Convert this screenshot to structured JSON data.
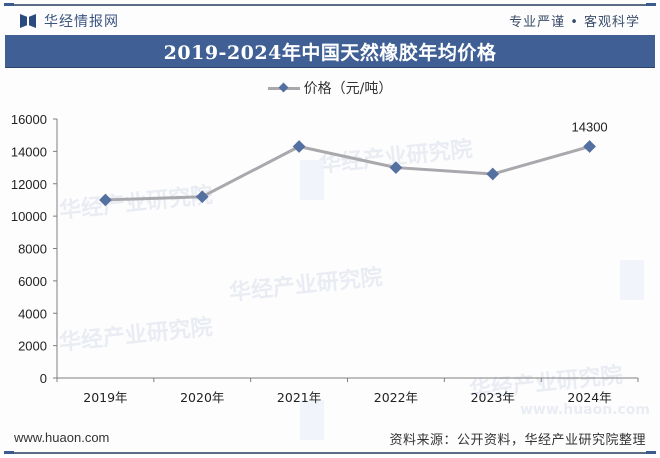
{
  "header": {
    "brand_name": "华经情报网",
    "slogan": "专业严谨 • 客观科学",
    "title": "2019-2024年中国天然橡胶年均价格"
  },
  "legend": {
    "label": "价格（元/吨）"
  },
  "footer": {
    "url": "www.huaon.com",
    "source": "资料来源：公开资料，华经产业研究院整理"
  },
  "watermark": {
    "text": "华经产业研究院",
    "url": "www.huaon.com"
  },
  "colors": {
    "title_bar": "#3f5f95",
    "line": "#a9a9ad",
    "marker": "#5370a0",
    "axis": "#7f7f7f"
  },
  "chart_data": {
    "type": "line",
    "title": "2019-2024年中国天然橡胶年均价格",
    "xlabel": "",
    "ylabel": "",
    "categories": [
      "2019年",
      "2020年",
      "2021年",
      "2022年",
      "2023年",
      "2024年"
    ],
    "series": [
      {
        "name": "价格（元/吨）",
        "values": [
          11000,
          11200,
          14300,
          13000,
          12600,
          14300
        ]
      }
    ],
    "data_labels": [
      {
        "index": 5,
        "text": "14300"
      }
    ],
    "ylim": [
      0,
      16000
    ],
    "yticks": [
      0,
      2000,
      4000,
      6000,
      8000,
      10000,
      12000,
      14000,
      16000
    ],
    "grid": false,
    "legend_position": "top"
  }
}
